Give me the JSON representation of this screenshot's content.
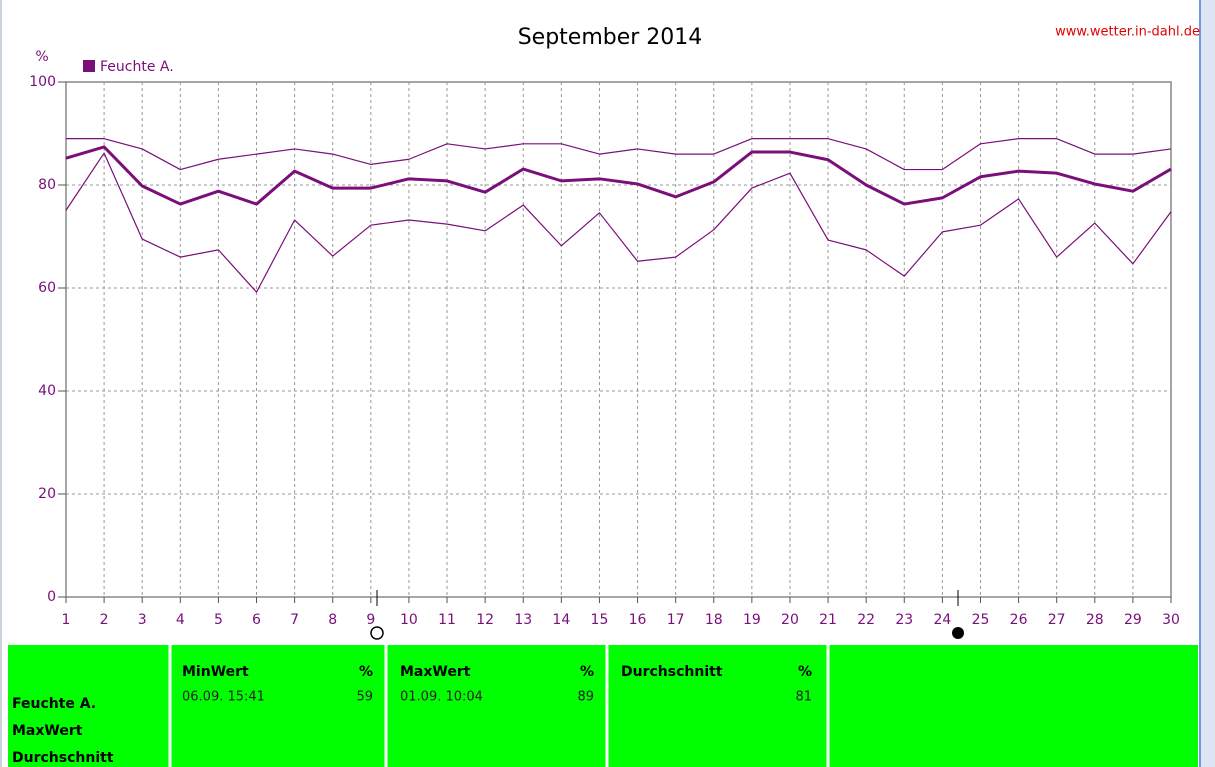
{
  "chart_data": {
    "type": "line",
    "title": "September 2014",
    "source": "www.wetter.in-dahl.de",
    "ylabel": "%",
    "x": [
      1,
      2,
      3,
      4,
      5,
      6,
      7,
      8,
      9,
      10,
      11,
      12,
      13,
      14,
      15,
      16,
      17,
      18,
      19,
      20,
      21,
      22,
      23,
      24,
      25,
      26,
      27,
      28,
      29,
      30
    ],
    "series": [
      {
        "name": "Feuchte A.",
        "color": "#7a0f7a",
        "values": [
          85.2,
          87.4,
          79.8,
          76.3,
          78.8,
          76.3,
          82.7,
          79.4,
          79.4,
          81.2,
          80.8,
          78.6,
          83.1,
          80.8,
          81.2,
          80.2,
          77.7,
          80.6,
          86.4,
          86.4,
          84.9,
          80.0,
          76.3,
          77.5,
          81.6,
          82.7,
          82.3,
          80.2,
          78.8,
          83.1
        ]
      },
      {
        "color": "#7a0f7a",
        "values": [
          89,
          89,
          87,
          83,
          85,
          86,
          87,
          86,
          84,
          85,
          88,
          87,
          88,
          88,
          86,
          87,
          86,
          86,
          89,
          89,
          89,
          87,
          83,
          83,
          88,
          89,
          89,
          86,
          86,
          87
        ]
      },
      {
        "color": "#7a0f7a",
        "values": [
          75.1,
          86.2,
          69.5,
          66.0,
          67.4,
          59.2,
          73.2,
          66.2,
          72.2,
          73.2,
          72.4,
          71.1,
          76.1,
          68.2,
          74.6,
          65.2,
          66.0,
          71.3,
          79.4,
          82.3,
          69.3,
          67.4,
          62.3,
          70.9,
          72.2,
          77.3,
          66.0,
          72.6,
          64.7,
          74.8
        ]
      }
    ],
    "xlim": [
      1,
      30
    ],
    "xticks": [
      1,
      2,
      3,
      4,
      5,
      6,
      7,
      8,
      9,
      10,
      11,
      12,
      13,
      14,
      15,
      16,
      17,
      18,
      19,
      20,
      21,
      22,
      23,
      24,
      25,
      26,
      27,
      28,
      29,
      30
    ],
    "ylim": [
      0,
      100
    ],
    "yticks": [
      0,
      20,
      40,
      60,
      80,
      100
    ],
    "grid": true
  },
  "table": {
    "row_labels": [
      "Feuchte A.",
      "MaxWert",
      "Durchschnitt"
    ],
    "columns": [
      {
        "header": "MinWert",
        "unit": "%",
        "time": "06.09. 15:41",
        "value": 59
      },
      {
        "header": "MaxWert",
        "unit": "%",
        "time": "01.09. 10:04",
        "value": 89
      },
      {
        "header": "Durchschnitt",
        "unit": "%",
        "value": 81
      }
    ]
  }
}
